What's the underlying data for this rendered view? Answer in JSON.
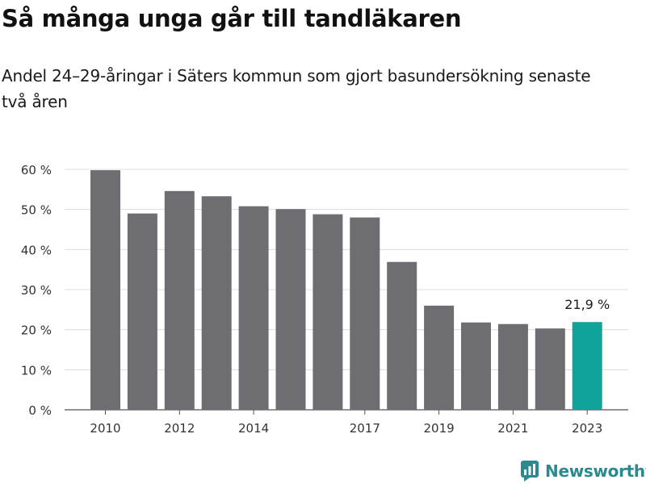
{
  "title": "Så många unga går till tandläkaren",
  "subtitle": "Andel 24–29-åringar i Säters kommun som gjort basundersökning senaste två åren",
  "brand": {
    "name": "Newsworthy"
  },
  "colors": {
    "bar": "#6e6d72",
    "highlight": "#0fa399",
    "grid": "#dcdcdc",
    "brand": "#2a8a8f"
  },
  "chart_data": {
    "type": "bar",
    "title": "Så många unga går till tandläkaren",
    "subtitle": "Andel 24–29-åringar i Säters kommun som gjort basundersökning senaste två åren",
    "categories": [
      "2010",
      "2011",
      "2012",
      "2013",
      "2014",
      "2015",
      "2016",
      "2017",
      "2018",
      "2019",
      "2020",
      "2021",
      "2022",
      "2023"
    ],
    "values": [
      59.8,
      49.0,
      54.6,
      53.3,
      50.8,
      50.1,
      48.8,
      48.0,
      36.9,
      26.0,
      21.8,
      21.4,
      20.3,
      21.9
    ],
    "x_tick_labels": [
      "2010",
      "2012",
      "2014",
      "2017",
      "2019",
      "2021",
      "2023"
    ],
    "y_ticks": [
      0,
      10,
      20,
      30,
      40,
      50,
      60
    ],
    "y_tick_labels": [
      "0 %",
      "10 %",
      "20 %",
      "30 %",
      "40 %",
      "50 %",
      "60 %"
    ],
    "ylim": [
      0,
      60
    ],
    "highlight_category": "2023",
    "annotation": {
      "category": "2023",
      "text": "21,9 %"
    },
    "grid": true,
    "legend": "none",
    "xlabel": "",
    "ylabel": ""
  }
}
